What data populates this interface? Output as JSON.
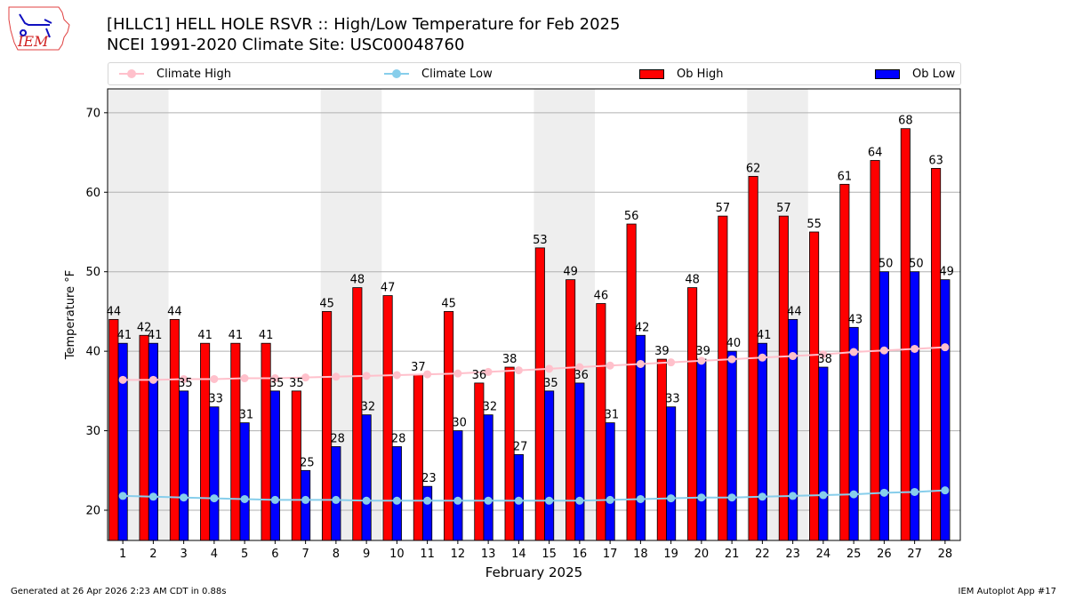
{
  "header": {
    "title_line1": "[HLLC1] HELL HOLE RSVR :: High/Low Temperature for Feb 2025",
    "title_line2": "NCEI 1991-2020 Climate Site: USC00048760",
    "logo_text": "IEM"
  },
  "legend": [
    {
      "label": "Climate High",
      "kind": "line",
      "color": "#ffc0cb"
    },
    {
      "label": "Climate Low",
      "kind": "line",
      "color": "#87ceeb"
    },
    {
      "label": "Ob High",
      "kind": "patch",
      "color": "#ff0000"
    },
    {
      "label": "Ob Low",
      "kind": "patch",
      "color": "#0000ff"
    }
  ],
  "footer": {
    "left": "Generated at 26 Apr 2026 2:23 AM CDT in 0.88s",
    "right": "IEM Autoplot App #17"
  },
  "chart_data": {
    "type": "bar",
    "title": "[HLLC1] HELL HOLE RSVR :: High/Low Temperature for Feb 2025",
    "subtitle": "NCEI 1991-2020 Climate Site: USC00048760",
    "xlabel": "February 2025",
    "ylabel": "Temperature °F",
    "xlim": [
      0.5,
      28.5
    ],
    "ylim": [
      16.2,
      73
    ],
    "yticks": [
      20,
      30,
      40,
      50,
      60,
      70
    ],
    "grid": "y",
    "legend_position": "top (above plot, single row)",
    "weekend_shading_days": [
      [
        1,
        2
      ],
      [
        8,
        9
      ],
      [
        15,
        16
      ],
      [
        22,
        23
      ]
    ],
    "x": [
      1,
      2,
      3,
      4,
      5,
      6,
      7,
      8,
      9,
      10,
      11,
      12,
      13,
      14,
      15,
      16,
      17,
      18,
      19,
      20,
      21,
      22,
      23,
      24,
      25,
      26,
      27,
      28
    ],
    "series": [
      {
        "name": "Ob High",
        "type": "bar",
        "color": "#ff0000",
        "values": [
          44,
          42,
          44,
          41,
          41,
          41,
          35,
          45,
          48,
          47,
          37,
          45,
          36,
          38,
          53,
          49,
          46,
          56,
          39,
          48,
          57,
          62,
          57,
          55,
          61,
          64,
          68,
          63
        ]
      },
      {
        "name": "Ob Low",
        "type": "bar",
        "color": "#0000ff",
        "values": [
          41,
          41,
          35,
          33,
          31,
          35,
          25,
          28,
          32,
          28,
          23,
          30,
          32,
          27,
          35,
          36,
          31,
          42,
          33,
          39,
          40,
          41,
          44,
          38,
          43,
          50,
          50,
          49
        ]
      },
      {
        "name": "Climate High",
        "type": "line",
        "color": "#ffc0cb",
        "values": [
          36.4,
          36.4,
          36.5,
          36.5,
          36.6,
          36.6,
          36.7,
          36.8,
          36.9,
          37.0,
          37.1,
          37.2,
          37.4,
          37.6,
          37.8,
          38.0,
          38.2,
          38.4,
          38.6,
          38.8,
          39.0,
          39.2,
          39.4,
          39.6,
          39.9,
          40.1,
          40.3,
          40.5
        ]
      },
      {
        "name": "Climate Low",
        "type": "line",
        "color": "#87ceeb",
        "values": [
          21.8,
          21.7,
          21.6,
          21.5,
          21.4,
          21.3,
          21.3,
          21.3,
          21.2,
          21.2,
          21.2,
          21.2,
          21.2,
          21.2,
          21.2,
          21.2,
          21.3,
          21.4,
          21.5,
          21.6,
          21.6,
          21.7,
          21.8,
          21.9,
          22.0,
          22.2,
          22.3,
          22.5
        ]
      }
    ]
  }
}
